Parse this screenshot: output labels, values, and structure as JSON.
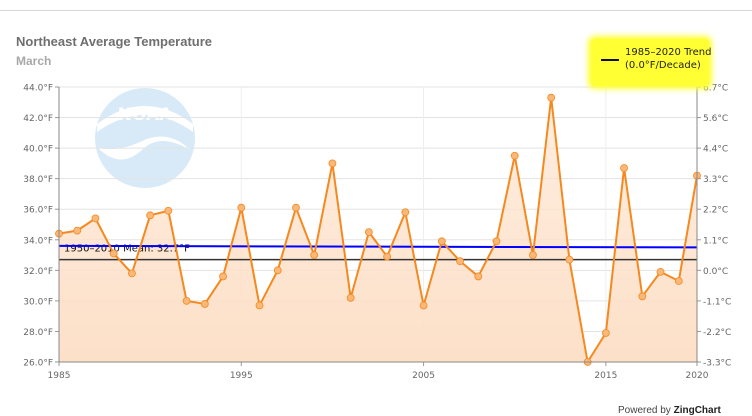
{
  "chart_data": {
    "type": "line",
    "title": "Northeast Average Temperature",
    "subtitle": "March",
    "x": [
      1985,
      1986,
      1987,
      1988,
      1989,
      1990,
      1991,
      1992,
      1993,
      1994,
      1995,
      1996,
      1997,
      1998,
      1999,
      2000,
      2001,
      2002,
      2003,
      2004,
      2005,
      2006,
      2007,
      2008,
      2009,
      2010,
      2011,
      2012,
      2013,
      2014,
      2015,
      2016,
      2017,
      2018,
      2019,
      2020
    ],
    "series": [
      {
        "values": [
          34.4,
          34.6,
          35.4,
          33.1,
          31.8,
          35.6,
          35.9,
          30.0,
          29.8,
          31.6,
          36.1,
          29.7,
          32.0,
          36.1,
          33.0,
          39.0,
          30.2,
          34.5,
          32.9,
          35.8,
          29.7,
          33.9,
          32.6,
          31.6,
          33.9,
          39.5,
          33.0,
          43.3,
          32.7,
          26.0,
          27.9,
          38.7,
          30.3,
          31.9,
          31.3,
          38.2
        ]
      }
    ],
    "trend": {
      "label": "1985–2020 Trend",
      "sublabel": "(0.0°F/Decade)",
      "start": 33.6,
      "end": 33.5,
      "color": "#0000ff"
    },
    "mean": {
      "label": "1950–2010 Mean: 32.7°F",
      "value": 32.7
    },
    "xlim": [
      1985,
      2020
    ],
    "ylim": [
      26,
      44
    ],
    "x_ticks": [
      1985,
      1995,
      2005,
      2015,
      2020
    ],
    "y_ticks": [
      "26.0°F",
      "28.0°F",
      "30.0°F",
      "32.0°F",
      "34.0°F",
      "36.0°F",
      "38.0°F",
      "40.0°F",
      "42.0°F",
      "44.0°F"
    ],
    "y2_ticks": [
      "-3.3°C",
      "-2.2°C",
      "-1.1°C",
      "0.0°C",
      "1.1°C",
      "2.2°C",
      "3.3°C",
      "4.4°C",
      "5.6°C",
      "6.7°C"
    ],
    "grid": true,
    "legend_position": "top-right"
  },
  "colors": {
    "line": "#f5891f",
    "marker": "#f9b778",
    "area": "#fde0c8",
    "trend": "#0000ff",
    "mean": "#333333"
  },
  "watermark": {
    "icon": "noaa-logo",
    "text": "NOAA"
  },
  "footer": {
    "prefix": "Powered by",
    "brand": "ZingChart"
  }
}
